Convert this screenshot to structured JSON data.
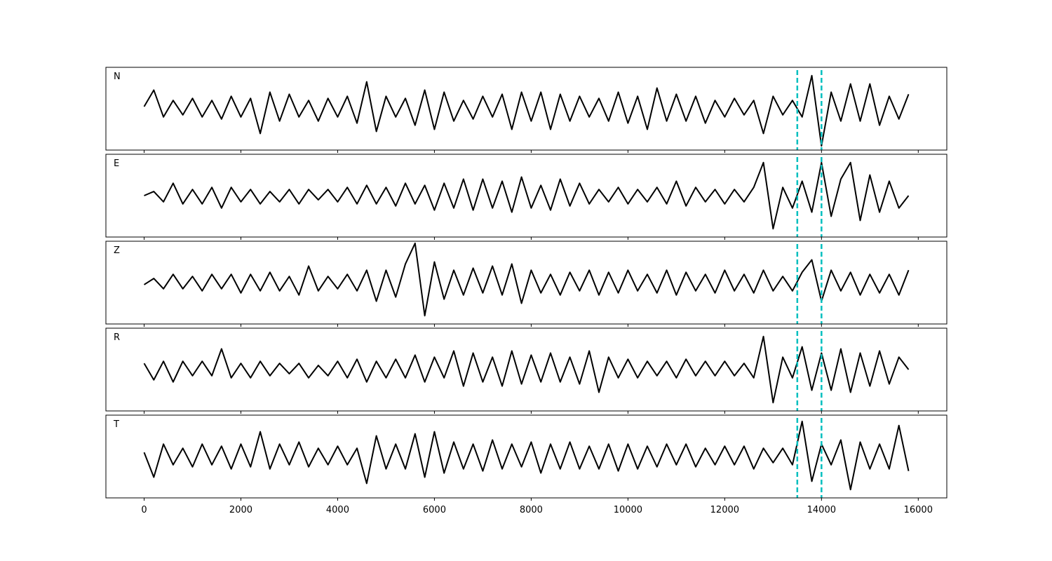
{
  "chart_data": {
    "type": "line",
    "layout": "stacked",
    "x": [
      0,
      200,
      400,
      600,
      800,
      1000,
      1200,
      1400,
      1600,
      1800,
      2000,
      2200,
      2400,
      2600,
      2800,
      3000,
      3200,
      3400,
      3600,
      3800,
      4000,
      4200,
      4400,
      4600,
      4800,
      5000,
      5200,
      5400,
      5600,
      5800,
      6000,
      6200,
      6400,
      6600,
      6800,
      7000,
      7200,
      7400,
      7600,
      7800,
      8000,
      8200,
      8400,
      8600,
      8800,
      9000,
      9200,
      9400,
      9600,
      9800,
      10000,
      10200,
      10400,
      10600,
      10800,
      11000,
      11200,
      11400,
      11600,
      11800,
      12000,
      12200,
      12400,
      12600,
      12800,
      13000,
      13200,
      13400,
      13600,
      13800,
      14000,
      14200,
      14400,
      14600,
      14800,
      15000,
      15200,
      15400,
      15600,
      15800
    ],
    "xlim": [
      -790,
      16590
    ],
    "xticks": [
      0,
      2000,
      4000,
      6000,
      8000,
      10000,
      12000,
      14000,
      16000
    ],
    "ylim": [
      -1,
      1
    ],
    "series": [
      {
        "name": "N",
        "color": "#000000",
        "values": [
          0.05,
          0.45,
          -0.2,
          0.2,
          -0.15,
          0.25,
          -0.2,
          0.2,
          -0.25,
          0.3,
          -0.2,
          0.25,
          -0.6,
          0.4,
          -0.3,
          0.35,
          -0.2,
          0.2,
          -0.3,
          0.25,
          -0.2,
          0.3,
          -0.35,
          0.65,
          -0.55,
          0.3,
          -0.2,
          0.25,
          -0.4,
          0.45,
          -0.5,
          0.4,
          -0.3,
          0.2,
          -0.25,
          0.3,
          -0.2,
          0.35,
          -0.5,
          0.4,
          -0.3,
          0.4,
          -0.5,
          0.35,
          -0.3,
          0.3,
          -0.2,
          0.25,
          -0.3,
          0.4,
          -0.35,
          0.3,
          -0.5,
          0.5,
          -0.3,
          0.35,
          -0.3,
          0.3,
          -0.35,
          0.2,
          -0.2,
          0.25,
          -0.15,
          0.2,
          -0.6,
          0.3,
          -0.15,
          0.2,
          -0.2,
          0.8,
          -0.9,
          0.4,
          -0.3,
          0.6,
          -0.3,
          0.6,
          -0.4,
          0.3,
          -0.25,
          0.35
        ]
      },
      {
        "name": "E",
        "color": "#000000",
        "values": [
          0.0,
          0.1,
          -0.15,
          0.3,
          -0.2,
          0.15,
          -0.2,
          0.2,
          -0.3,
          0.2,
          -0.15,
          0.15,
          -0.2,
          0.1,
          -0.15,
          0.15,
          -0.2,
          0.15,
          -0.1,
          0.15,
          -0.15,
          0.2,
          -0.2,
          0.25,
          -0.2,
          0.2,
          -0.25,
          0.3,
          -0.2,
          0.25,
          -0.35,
          0.3,
          -0.3,
          0.4,
          -0.35,
          0.4,
          -0.3,
          0.35,
          -0.4,
          0.45,
          -0.3,
          0.25,
          -0.35,
          0.4,
          -0.25,
          0.3,
          -0.2,
          0.15,
          -0.15,
          0.2,
          -0.2,
          0.15,
          -0.15,
          0.2,
          -0.2,
          0.35,
          -0.25,
          0.2,
          -0.15,
          0.15,
          -0.2,
          0.15,
          -0.15,
          0.2,
          0.8,
          -0.8,
          0.2,
          -0.3,
          0.35,
          -0.4,
          0.8,
          -0.5,
          0.4,
          0.8,
          -0.6,
          0.5,
          -0.4,
          0.35,
          -0.3,
          0.0
        ]
      },
      {
        "name": "Z",
        "color": "#000000",
        "values": [
          -0.05,
          0.1,
          -0.15,
          0.2,
          -0.15,
          0.15,
          -0.2,
          0.2,
          -0.15,
          0.2,
          -0.25,
          0.2,
          -0.2,
          0.25,
          -0.2,
          0.15,
          -0.3,
          0.4,
          -0.2,
          0.15,
          -0.15,
          0.2,
          -0.2,
          0.3,
          -0.45,
          0.3,
          -0.35,
          0.45,
          0.95,
          -0.8,
          0.5,
          -0.4,
          0.3,
          -0.3,
          0.35,
          -0.25,
          0.4,
          -0.3,
          0.45,
          -0.5,
          0.3,
          -0.25,
          0.2,
          -0.3,
          0.25,
          -0.2,
          0.3,
          -0.3,
          0.25,
          -0.25,
          0.3,
          -0.2,
          0.2,
          -0.25,
          0.3,
          -0.3,
          0.25,
          -0.2,
          0.2,
          -0.25,
          0.3,
          -0.2,
          0.2,
          -0.25,
          0.3,
          -0.2,
          0.15,
          -0.2,
          0.25,
          0.55,
          -0.45,
          0.3,
          -0.2,
          0.25,
          -0.3,
          0.2,
          -0.25,
          0.2,
          -0.3,
          0.3
        ]
      },
      {
        "name": "R",
        "color": "#000000",
        "values": [
          0.15,
          -0.25,
          0.2,
          -0.3,
          0.2,
          -0.15,
          0.2,
          -0.15,
          0.5,
          -0.2,
          0.15,
          -0.2,
          0.2,
          -0.15,
          0.15,
          -0.1,
          0.15,
          -0.2,
          0.1,
          -0.15,
          0.2,
          -0.2,
          0.25,
          -0.3,
          0.2,
          -0.2,
          0.25,
          -0.2,
          0.35,
          -0.3,
          0.3,
          -0.2,
          0.45,
          -0.4,
          0.4,
          -0.3,
          0.3,
          -0.4,
          0.45,
          -0.35,
          0.35,
          -0.3,
          0.4,
          -0.3,
          0.3,
          -0.35,
          0.45,
          -0.55,
          0.3,
          -0.2,
          0.25,
          -0.2,
          0.2,
          -0.15,
          0.2,
          -0.2,
          0.25,
          -0.15,
          0.2,
          -0.15,
          0.2,
          -0.15,
          0.15,
          -0.2,
          0.8,
          -0.8,
          0.3,
          -0.2,
          0.55,
          -0.5,
          0.4,
          -0.5,
          0.5,
          -0.55,
          0.4,
          -0.4,
          0.45,
          -0.35,
          0.3,
          0.0
        ]
      },
      {
        "name": "T",
        "color": "#000000",
        "values": [
          0.1,
          -0.5,
          0.3,
          -0.2,
          0.2,
          -0.25,
          0.3,
          -0.2,
          0.25,
          -0.3,
          0.3,
          -0.25,
          0.6,
          -0.3,
          0.3,
          -0.2,
          0.35,
          -0.25,
          0.2,
          -0.2,
          0.25,
          -0.2,
          0.2,
          -0.65,
          0.5,
          -0.3,
          0.3,
          -0.3,
          0.55,
          -0.5,
          0.6,
          -0.4,
          0.35,
          -0.3,
          0.3,
          -0.35,
          0.4,
          -0.3,
          0.3,
          -0.25,
          0.35,
          -0.4,
          0.3,
          -0.3,
          0.35,
          -0.3,
          0.25,
          -0.3,
          0.3,
          -0.35,
          0.3,
          -0.3,
          0.25,
          -0.25,
          0.3,
          -0.2,
          0.3,
          -0.25,
          0.2,
          -0.2,
          0.25,
          -0.2,
          0.25,
          -0.3,
          0.2,
          -0.15,
          0.2,
          -0.2,
          0.85,
          -0.6,
          0.3,
          -0.2,
          0.4,
          -0.8,
          0.35,
          -0.3,
          0.3,
          -0.3,
          0.75,
          -0.35
        ]
      }
    ],
    "vlines": {
      "x": [
        13500,
        14000
      ],
      "color": "#00bfbf"
    }
  }
}
